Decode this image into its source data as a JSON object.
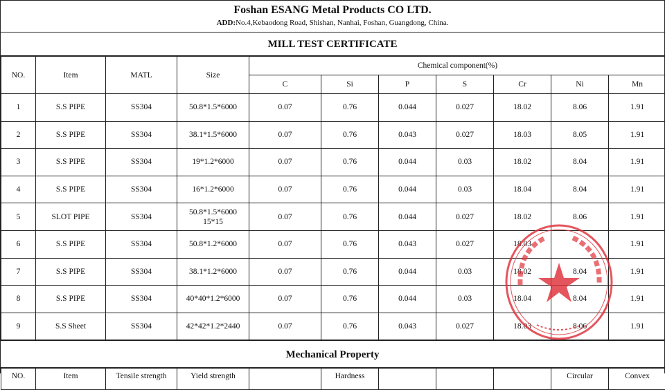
{
  "company": {
    "name": "Foshan ESANG Metal Products CO LTD.",
    "address_label": "ADD:",
    "address": "No.4,Kebaodong Road, Shishan, Nanhai, Foshan, Guangdong, China."
  },
  "certificate_title": "MILL TEST CERTIFICATE",
  "table": {
    "headers": {
      "no": "NO.",
      "item": "Item",
      "matl": "MATL",
      "size": "Size",
      "chemical": "Chemical component(%)"
    },
    "elements": [
      "C",
      "Si",
      "P",
      "S",
      "Cr",
      "Ni",
      "Mn"
    ],
    "rows": [
      {
        "no": "1",
        "item": "S.S PIPE",
        "matl": "SS304",
        "size": "50.8*1.5*6000",
        "size2": "",
        "values": [
          "0.07",
          "0.76",
          "0.044",
          "0.027",
          "18.02",
          "8.06",
          "1.91"
        ]
      },
      {
        "no": "2",
        "item": "S.S PIPE",
        "matl": "SS304",
        "size": "38.1*1.5*6000",
        "size2": "",
        "values": [
          "0.07",
          "0.76",
          "0.043",
          "0.027",
          "18.03",
          "8.05",
          "1.91"
        ]
      },
      {
        "no": "3",
        "item": "S.S PIPE",
        "matl": "SS304",
        "size": "19*1.2*6000",
        "size2": "",
        "values": [
          "0.07",
          "0.76",
          "0.044",
          "0.03",
          "18.02",
          "8.04",
          "1.91"
        ]
      },
      {
        "no": "4",
        "item": "S.S PIPE",
        "matl": "SS304",
        "size": "16*1.2*6000",
        "size2": "",
        "values": [
          "0.07",
          "0.76",
          "0.044",
          "0.03",
          "18.04",
          "8.04",
          "1.91"
        ]
      },
      {
        "no": "5",
        "item": "SLOT PIPE",
        "matl": "SS304",
        "size": "50.8*1.5*6000",
        "size2": "15*15",
        "values": [
          "0.07",
          "0.76",
          "0.044",
          "0.027",
          "18.02",
          "8.06",
          "1.91"
        ]
      },
      {
        "no": "6",
        "item": "S.S PIPE",
        "matl": "SS304",
        "size": "50.8*1.2*6000",
        "size2": "",
        "values": [
          "0.07",
          "0.76",
          "0.043",
          "0.027",
          "18.03",
          "",
          "1.91"
        ]
      },
      {
        "no": "7",
        "item": "S.S PIPE",
        "matl": "SS304",
        "size": "38.1*1.2*6000",
        "size2": "",
        "values": [
          "0.07",
          "0.76",
          "0.044",
          "0.03",
          "18.02",
          "8.04",
          "1.91"
        ]
      },
      {
        "no": "8",
        "item": "S.S PIPE",
        "matl": "SS304",
        "size": "40*40*1.2*6000",
        "size2": "",
        "values": [
          "0.07",
          "0.76",
          "0.044",
          "0.03",
          "18.04",
          "8.04",
          "1.91"
        ]
      },
      {
        "no": "9",
        "item": "S.S Sheet",
        "matl": "SS304",
        "size": "42*42*1.2*2440",
        "size2": "",
        "values": [
          "0.07",
          "0.76",
          "0.043",
          "0.027",
          "18.03",
          "8.06",
          "1.91"
        ]
      }
    ]
  },
  "mechanical": {
    "title": "Mechanical Property",
    "headers": [
      "NO.",
      "Item",
      "Tensile strength",
      "Yield strength",
      "",
      "Hardness",
      "",
      "",
      "",
      "Circular",
      "Convex"
    ]
  },
  "stamp": {
    "color": "#e0303a",
    "shape": "round-seal-with-star"
  }
}
